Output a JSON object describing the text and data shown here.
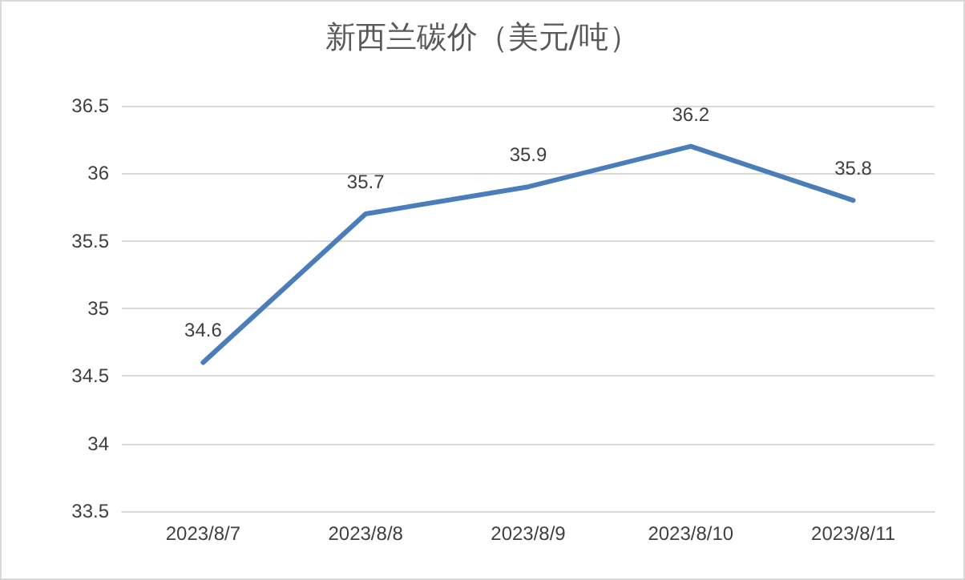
{
  "chart_data": {
    "type": "line",
    "title": "新西兰碳价（美元/吨）",
    "categories": [
      "2023/8/7",
      "2023/8/8",
      "2023/8/9",
      "2023/8/10",
      "2023/8/11"
    ],
    "series": [
      {
        "color": "#4a7ebb",
        "values": [
          34.6,
          35.7,
          35.9,
          36.2,
          35.8
        ]
      }
    ],
    "ylim": [
      33.5,
      36.5
    ],
    "yticks": [
      33.5,
      34,
      34.5,
      35,
      35.5,
      36,
      36.5
    ],
    "grid": "y",
    "data_labels": true,
    "marker": "none",
    "line_style": "solid"
  }
}
